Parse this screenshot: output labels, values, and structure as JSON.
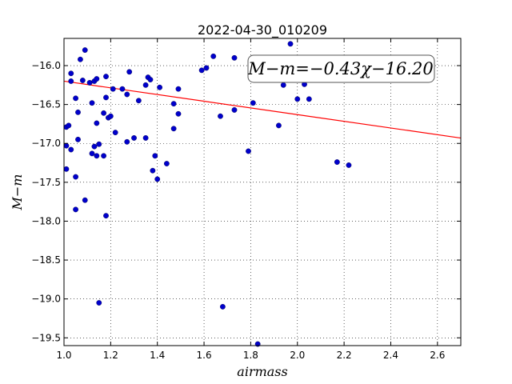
{
  "chart_data": {
    "type": "scatter",
    "title": "2022-04-30_010209",
    "xlabel": "airmass",
    "ylabel": "M−m",
    "xlim": [
      1.0,
      2.7
    ],
    "ylim": [
      -19.6,
      -15.65
    ],
    "y_inverted": false,
    "grid": true,
    "xticks": [
      1.0,
      1.2,
      1.4,
      1.6,
      1.8,
      2.0,
      2.2,
      2.4,
      2.6
    ],
    "xtick_labels": [
      "1.0",
      "1.2",
      "1.4",
      "1.6",
      "1.8",
      "2.0",
      "2.2",
      "2.4",
      "2.6"
    ],
    "yticks": [
      -16.0,
      -16.5,
      -17.0,
      -17.5,
      -18.0,
      -18.5,
      -19.0,
      -19.5
    ],
    "ytick_labels": [
      "−16.0",
      "−16.5",
      "−17.0",
      "−17.5",
      "−18.0",
      "−18.5",
      "−19.0",
      "−19.5"
    ],
    "point_color": "#0000cc",
    "line_color": "#ff0000",
    "fit": {
      "slope": -0.43,
      "intercept": -16.2
    },
    "annotation": "M−m=−0.43χ−16.20",
    "points": [
      {
        "x": 1.01,
        "y": -16.79
      },
      {
        "x": 1.01,
        "y": -17.03
      },
      {
        "x": 1.01,
        "y": -17.33
      },
      {
        "x": 1.02,
        "y": -16.77
      },
      {
        "x": 1.03,
        "y": -16.1
      },
      {
        "x": 1.03,
        "y": -16.2
      },
      {
        "x": 1.03,
        "y": -17.08
      },
      {
        "x": 1.05,
        "y": -16.42
      },
      {
        "x": 1.05,
        "y": -17.43
      },
      {
        "x": 1.05,
        "y": -17.85
      },
      {
        "x": 1.06,
        "y": -16.6
      },
      {
        "x": 1.06,
        "y": -16.95
      },
      {
        "x": 1.07,
        "y": -15.92
      },
      {
        "x": 1.08,
        "y": -16.19
      },
      {
        "x": 1.09,
        "y": -15.8
      },
      {
        "x": 1.09,
        "y": -17.73
      },
      {
        "x": 1.11,
        "y": -16.22
      },
      {
        "x": 1.12,
        "y": -16.48
      },
      {
        "x": 1.12,
        "y": -17.13
      },
      {
        "x": 1.13,
        "y": -16.2
      },
      {
        "x": 1.13,
        "y": -17.04
      },
      {
        "x": 1.14,
        "y": -16.17
      },
      {
        "x": 1.14,
        "y": -16.74
      },
      {
        "x": 1.14,
        "y": -17.16
      },
      {
        "x": 1.15,
        "y": -17.01
      },
      {
        "x": 1.15,
        "y": -19.05
      },
      {
        "x": 1.17,
        "y": -16.61
      },
      {
        "x": 1.17,
        "y": -17.16
      },
      {
        "x": 1.18,
        "y": -16.14
      },
      {
        "x": 1.18,
        "y": -16.41
      },
      {
        "x": 1.18,
        "y": -17.93
      },
      {
        "x": 1.19,
        "y": -16.67
      },
      {
        "x": 1.2,
        "y": -16.65
      },
      {
        "x": 1.21,
        "y": -16.3
      },
      {
        "x": 1.22,
        "y": -16.86
      },
      {
        "x": 1.25,
        "y": -16.3
      },
      {
        "x": 1.27,
        "y": -16.37
      },
      {
        "x": 1.27,
        "y": -16.98
      },
      {
        "x": 1.28,
        "y": -16.08
      },
      {
        "x": 1.3,
        "y": -16.93
      },
      {
        "x": 1.32,
        "y": -16.45
      },
      {
        "x": 1.35,
        "y": -16.25
      },
      {
        "x": 1.35,
        "y": -16.93
      },
      {
        "x": 1.36,
        "y": -16.15
      },
      {
        "x": 1.37,
        "y": -16.18
      },
      {
        "x": 1.38,
        "y": -17.35
      },
      {
        "x": 1.39,
        "y": -17.16
      },
      {
        "x": 1.4,
        "y": -17.46
      },
      {
        "x": 1.41,
        "y": -16.28
      },
      {
        "x": 1.44,
        "y": -17.26
      },
      {
        "x": 1.47,
        "y": -16.49
      },
      {
        "x": 1.47,
        "y": -16.81
      },
      {
        "x": 1.49,
        "y": -16.3
      },
      {
        "x": 1.49,
        "y": -16.62
      },
      {
        "x": 1.59,
        "y": -16.06
      },
      {
        "x": 1.61,
        "y": -16.03
      },
      {
        "x": 1.64,
        "y": -15.88
      },
      {
        "x": 1.67,
        "y": -16.65
      },
      {
        "x": 1.68,
        "y": -19.1
      },
      {
        "x": 1.73,
        "y": -15.9
      },
      {
        "x": 1.73,
        "y": -16.57
      },
      {
        "x": 1.79,
        "y": -17.1
      },
      {
        "x": 1.81,
        "y": -16.48
      },
      {
        "x": 1.83,
        "y": -19.58
      },
      {
        "x": 1.92,
        "y": -16.77
      },
      {
        "x": 1.94,
        "y": -16.25
      },
      {
        "x": 1.97,
        "y": -15.72
      },
      {
        "x": 2.0,
        "y": -16.43
      },
      {
        "x": 2.03,
        "y": -16.24
      },
      {
        "x": 2.05,
        "y": -16.43
      },
      {
        "x": 2.17,
        "y": -17.24
      },
      {
        "x": 2.22,
        "y": -17.28
      }
    ]
  }
}
